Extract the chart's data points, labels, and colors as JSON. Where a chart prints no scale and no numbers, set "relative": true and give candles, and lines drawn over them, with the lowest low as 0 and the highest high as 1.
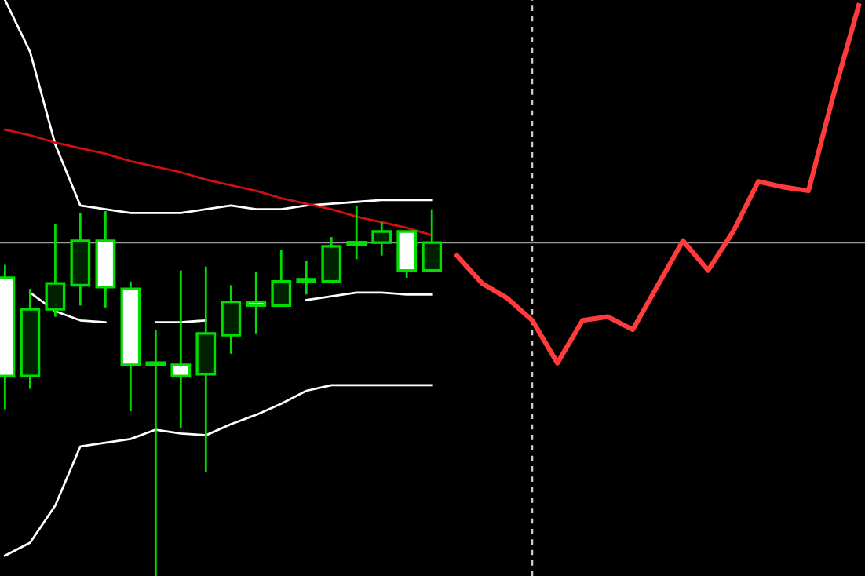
{
  "chart_data": {
    "type": "candlestick",
    "relative": true,
    "grid": false,
    "categories": [
      null,
      null,
      null,
      null,
      null,
      null,
      null,
      null,
      null,
      null,
      null,
      null,
      null,
      null,
      null,
      null,
      null,
      null,
      null,
      null,
      null,
      null,
      null,
      null,
      null,
      null,
      null,
      null,
      null,
      null,
      null,
      null,
      null,
      null,
      null
    ],
    "series": [
      {
        "type": "line",
        "color": "#ffffff",
        "values": [
          1.555,
          1.415,
          1.165,
          1.0,
          0.99,
          0.98,
          0.98,
          0.98,
          0.99,
          1.0,
          0.99,
          0.99,
          1.0,
          1.005,
          1.01,
          1.015,
          1.015,
          1.015,
          null,
          null,
          null,
          null,
          null,
          null,
          null,
          null,
          null,
          null,
          null,
          null,
          null,
          null,
          null,
          null,
          null
        ]
      },
      {
        "type": "line",
        "color": "#ffffff",
        "values": [
          null,
          0.765,
          0.715,
          0.69,
          0.685,
          null,
          0.685,
          0.685,
          0.69,
          null,
          null,
          null,
          0.745,
          0.755,
          0.765,
          0.765,
          0.76,
          0.76,
          null,
          null,
          null,
          null,
          null,
          null,
          null,
          null,
          null,
          null,
          null,
          null,
          null,
          null,
          null,
          null,
          null
        ]
      },
      {
        "type": "line",
        "color": "#ffffff",
        "values": [
          0.055,
          0.09,
          0.19,
          0.35,
          0.36,
          0.37,
          0.395,
          0.385,
          0.38,
          0.41,
          0.435,
          0.465,
          0.5,
          0.515,
          0.515,
          0.515,
          0.515,
          0.515,
          null,
          null,
          null,
          null,
          null,
          null,
          null,
          null,
          null,
          null,
          null,
          null,
          null,
          null,
          null,
          null,
          null
        ]
      },
      {
        "type": "line",
        "color": "#d01010",
        "values": [
          1.205,
          1.19,
          1.17,
          1.155,
          1.14,
          1.12,
          1.105,
          1.09,
          1.07,
          1.055,
          1.04,
          1.02,
          1.005,
          0.99,
          0.97,
          0.955,
          0.94,
          0.92,
          null,
          null,
          null,
          null,
          null,
          null,
          null,
          null,
          null,
          null,
          null,
          null,
          null,
          null,
          null,
          null,
          null
        ]
      },
      {
        "type": "line",
        "color": "#ff3b3b",
        "values": [
          null,
          null,
          null,
          null,
          null,
          null,
          null,
          null,
          null,
          null,
          null,
          null,
          null,
          null,
          null,
          null,
          null,
          null,
          0.865,
          0.79,
          0.75,
          0.69,
          0.575,
          0.69,
          0.7,
          0.665,
          0.785,
          0.905,
          0.825,
          0.93,
          1.065,
          1.05,
          1.04,
          1.3,
          1.54
        ]
      },
      {
        "color": "#00dd00",
        "ohlc": [
          [
            0.805,
            0.84,
            0.45,
            0.54
          ],
          [
            0.54,
            0.775,
            0.505,
            0.72
          ],
          [
            0.72,
            0.95,
            0.7,
            0.79
          ],
          [
            0.785,
            0.98,
            0.73,
            0.905
          ],
          [
            0.905,
            0.985,
            0.725,
            0.78
          ],
          [
            0.775,
            0.795,
            0.445,
            0.57
          ],
          [
            0.57,
            0.665,
            0,
            0.57
          ],
          [
            0.57,
            0.825,
            0.4,
            0.54
          ],
          [
            0.545,
            0.835,
            0.28,
            0.655
          ],
          [
            0.65,
            0.785,
            0.6,
            0.74
          ],
          [
            0.74,
            0.82,
            0.655,
            0.73
          ],
          [
            0.73,
            0.88,
            0.73,
            0.795
          ],
          [
            0.795,
            0.85,
            0.76,
            0.795
          ],
          [
            0.795,
            0.915,
            0.795,
            0.89
          ],
          [
            0.895,
            1,
            0.855,
            0.895
          ],
          [
            0.9,
            0.955,
            0.865,
            0.93
          ],
          [
            0.93,
            0.93,
            0.805,
            0.825
          ],
          [
            0.825,
            0.99,
            0.825,
            0.9
          ],
          null,
          null,
          null,
          null,
          null,
          null,
          null,
          null,
          null,
          null,
          null,
          null,
          null,
          null,
          null,
          null,
          null
        ]
      }
    ],
    "ref_lines": [
      {
        "axis": "y",
        "value": 0.9,
        "color": "#9a9a9a",
        "line_style": "solid"
      }
    ]
  }
}
